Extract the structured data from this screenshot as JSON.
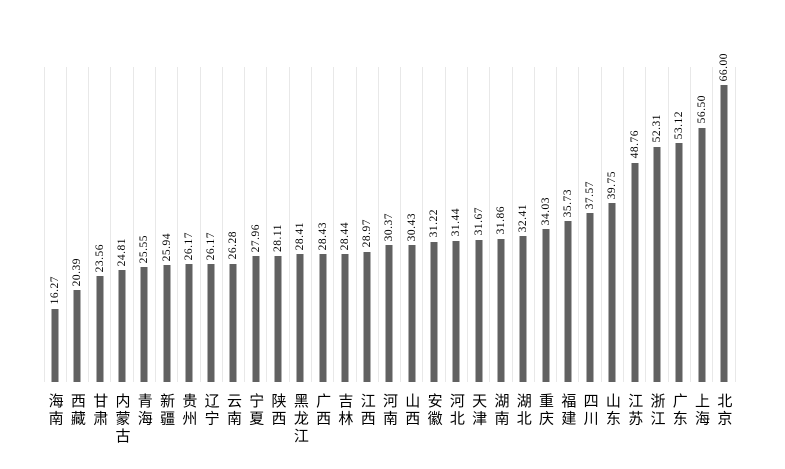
{
  "chart_data": {
    "type": "bar",
    "title": "",
    "xlabel": "",
    "ylabel": "",
    "categories": [
      "海南",
      "西藏",
      "甘肃",
      "内蒙古",
      "青海",
      "新疆",
      "贵州",
      "辽宁",
      "云南",
      "宁夏",
      "陕西",
      "黑龙江",
      "广西",
      "吉林",
      "江西",
      "河南",
      "山西",
      "安徽",
      "河北",
      "天津",
      "湖南",
      "湖北",
      "重庆",
      "福建",
      "四川",
      "山东",
      "江苏",
      "浙江",
      "广东",
      "上海",
      "北京"
    ],
    "values": [
      16.27,
      20.39,
      23.56,
      24.81,
      25.55,
      25.94,
      26.17,
      26.17,
      26.28,
      27.96,
      28.11,
      28.41,
      28.43,
      28.44,
      28.97,
      30.37,
      30.43,
      31.22,
      31.44,
      31.67,
      31.86,
      32.41,
      34.03,
      35.73,
      37.57,
      39.75,
      48.76,
      52.31,
      53.12,
      56.5,
      66.0
    ],
    "value_label_decimals": 2,
    "value_label_rotation_deg": 90,
    "ylim": [
      0,
      70
    ],
    "legend": "none",
    "y_axis_labels_visible": false,
    "gridlines": "vertical-category-boundaries",
    "colors": {
      "bar": "#616161",
      "gridline": "#e8e8e8",
      "text": "#000000",
      "background": "#ffffff"
    }
  }
}
